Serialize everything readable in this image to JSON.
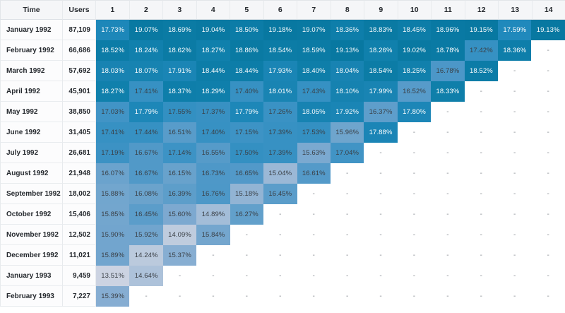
{
  "chart_data": {
    "type": "heatmap",
    "description": "Cohort retention table: monthly cohorts (rows) vs period number 1-14 (columns), cell values are retention percentages",
    "corner_headers": {
      "time": "Time",
      "users": "Users"
    },
    "x_labels": [
      "1",
      "2",
      "3",
      "4",
      "5",
      "6",
      "7",
      "8",
      "9",
      "10",
      "11",
      "12",
      "13",
      "14"
    ],
    "empty_marker": "-",
    "value_suffix": "%",
    "cohorts": [
      {
        "time": "January 1992",
        "users": "87,109",
        "values": [
          17.73,
          19.07,
          18.69,
          19.04,
          18.5,
          19.18,
          19.07,
          18.36,
          18.83,
          18.45,
          18.96,
          19.15,
          17.59,
          19.13
        ]
      },
      {
        "time": "February 1992",
        "users": "66,686",
        "values": [
          18.52,
          18.24,
          18.62,
          18.27,
          18.86,
          18.54,
          18.59,
          19.13,
          18.26,
          19.02,
          18.78,
          17.42,
          18.36,
          null
        ]
      },
      {
        "time": "March 1992",
        "users": "57,692",
        "values": [
          18.03,
          18.07,
          17.91,
          18.44,
          18.44,
          17.93,
          18.4,
          18.04,
          18.54,
          18.25,
          16.78,
          18.52,
          null,
          null
        ]
      },
      {
        "time": "April 1992",
        "users": "45,901",
        "values": [
          18.27,
          17.41,
          18.37,
          18.29,
          17.4,
          18.01,
          17.43,
          18.1,
          17.99,
          16.52,
          18.33,
          null,
          null,
          null
        ]
      },
      {
        "time": "May 1992",
        "users": "38,850",
        "values": [
          17.03,
          17.79,
          17.55,
          17.37,
          17.79,
          17.26,
          18.05,
          17.92,
          16.37,
          17.8,
          null,
          null,
          null,
          null
        ]
      },
      {
        "time": "June 1992",
        "users": "31,405",
        "values": [
          17.41,
          17.44,
          16.51,
          17.4,
          17.15,
          17.39,
          17.53,
          15.96,
          17.88,
          null,
          null,
          null,
          null,
          null
        ]
      },
      {
        "time": "July 1992",
        "users": "26,681",
        "values": [
          17.19,
          16.67,
          17.14,
          16.55,
          17.5,
          17.39,
          15.63,
          17.04,
          null,
          null,
          null,
          null,
          null,
          null
        ]
      },
      {
        "time": "August 1992",
        "users": "21,948",
        "values": [
          16.07,
          16.67,
          16.15,
          16.73,
          16.65,
          15.04,
          16.61,
          null,
          null,
          null,
          null,
          null,
          null,
          null
        ]
      },
      {
        "time": "September 1992",
        "users": "18,002",
        "values": [
          15.88,
          16.08,
          16.39,
          16.76,
          15.18,
          16.45,
          null,
          null,
          null,
          null,
          null,
          null,
          null,
          null
        ]
      },
      {
        "time": "October 1992",
        "users": "15,406",
        "values": [
          15.85,
          16.45,
          15.6,
          14.89,
          16.27,
          null,
          null,
          null,
          null,
          null,
          null,
          null,
          null,
          null
        ]
      },
      {
        "time": "November 1992",
        "users": "12,502",
        "values": [
          15.9,
          15.92,
          14.09,
          15.84,
          null,
          null,
          null,
          null,
          null,
          null,
          null,
          null,
          null,
          null
        ]
      },
      {
        "time": "December 1992",
        "users": "11,021",
        "values": [
          15.89,
          14.24,
          15.37,
          null,
          null,
          null,
          null,
          null,
          null,
          null,
          null,
          null,
          null,
          null
        ]
      },
      {
        "time": "January 1993",
        "users": "9,459",
        "values": [
          13.51,
          14.64,
          null,
          null,
          null,
          null,
          null,
          null,
          null,
          null,
          null,
          null,
          null,
          null
        ]
      },
      {
        "time": "February 1993",
        "users": "7,227",
        "values": [
          15.39,
          null,
          null,
          null,
          null,
          null,
          null,
          null,
          null,
          null,
          null,
          null,
          null,
          null
        ]
      }
    ],
    "value_range": [
      13.51,
      19.18
    ],
    "colorscale": [
      [
        13.5,
        "#ccd3e2"
      ],
      [
        14.3,
        "#bac9dd"
      ],
      [
        14.9,
        "#a3bdd8"
      ],
      [
        15.45,
        "#82abd1"
      ],
      [
        16.0,
        "#6ea4cd"
      ],
      [
        16.6,
        "#549ac9"
      ],
      [
        17.1,
        "#3e93c5"
      ],
      [
        17.56,
        "#3390c2"
      ],
      [
        17.58,
        "#2089bc"
      ],
      [
        18.0,
        "#1984b3"
      ],
      [
        18.3,
        "#0f7fab"
      ],
      [
        18.6,
        "#0b7ba5"
      ],
      [
        19.2,
        "#0878a1"
      ]
    ],
    "text_colors": {
      "on_dark": "#ffffff",
      "on_light": "#3a3f45",
      "dash": "#8a8f95"
    }
  }
}
